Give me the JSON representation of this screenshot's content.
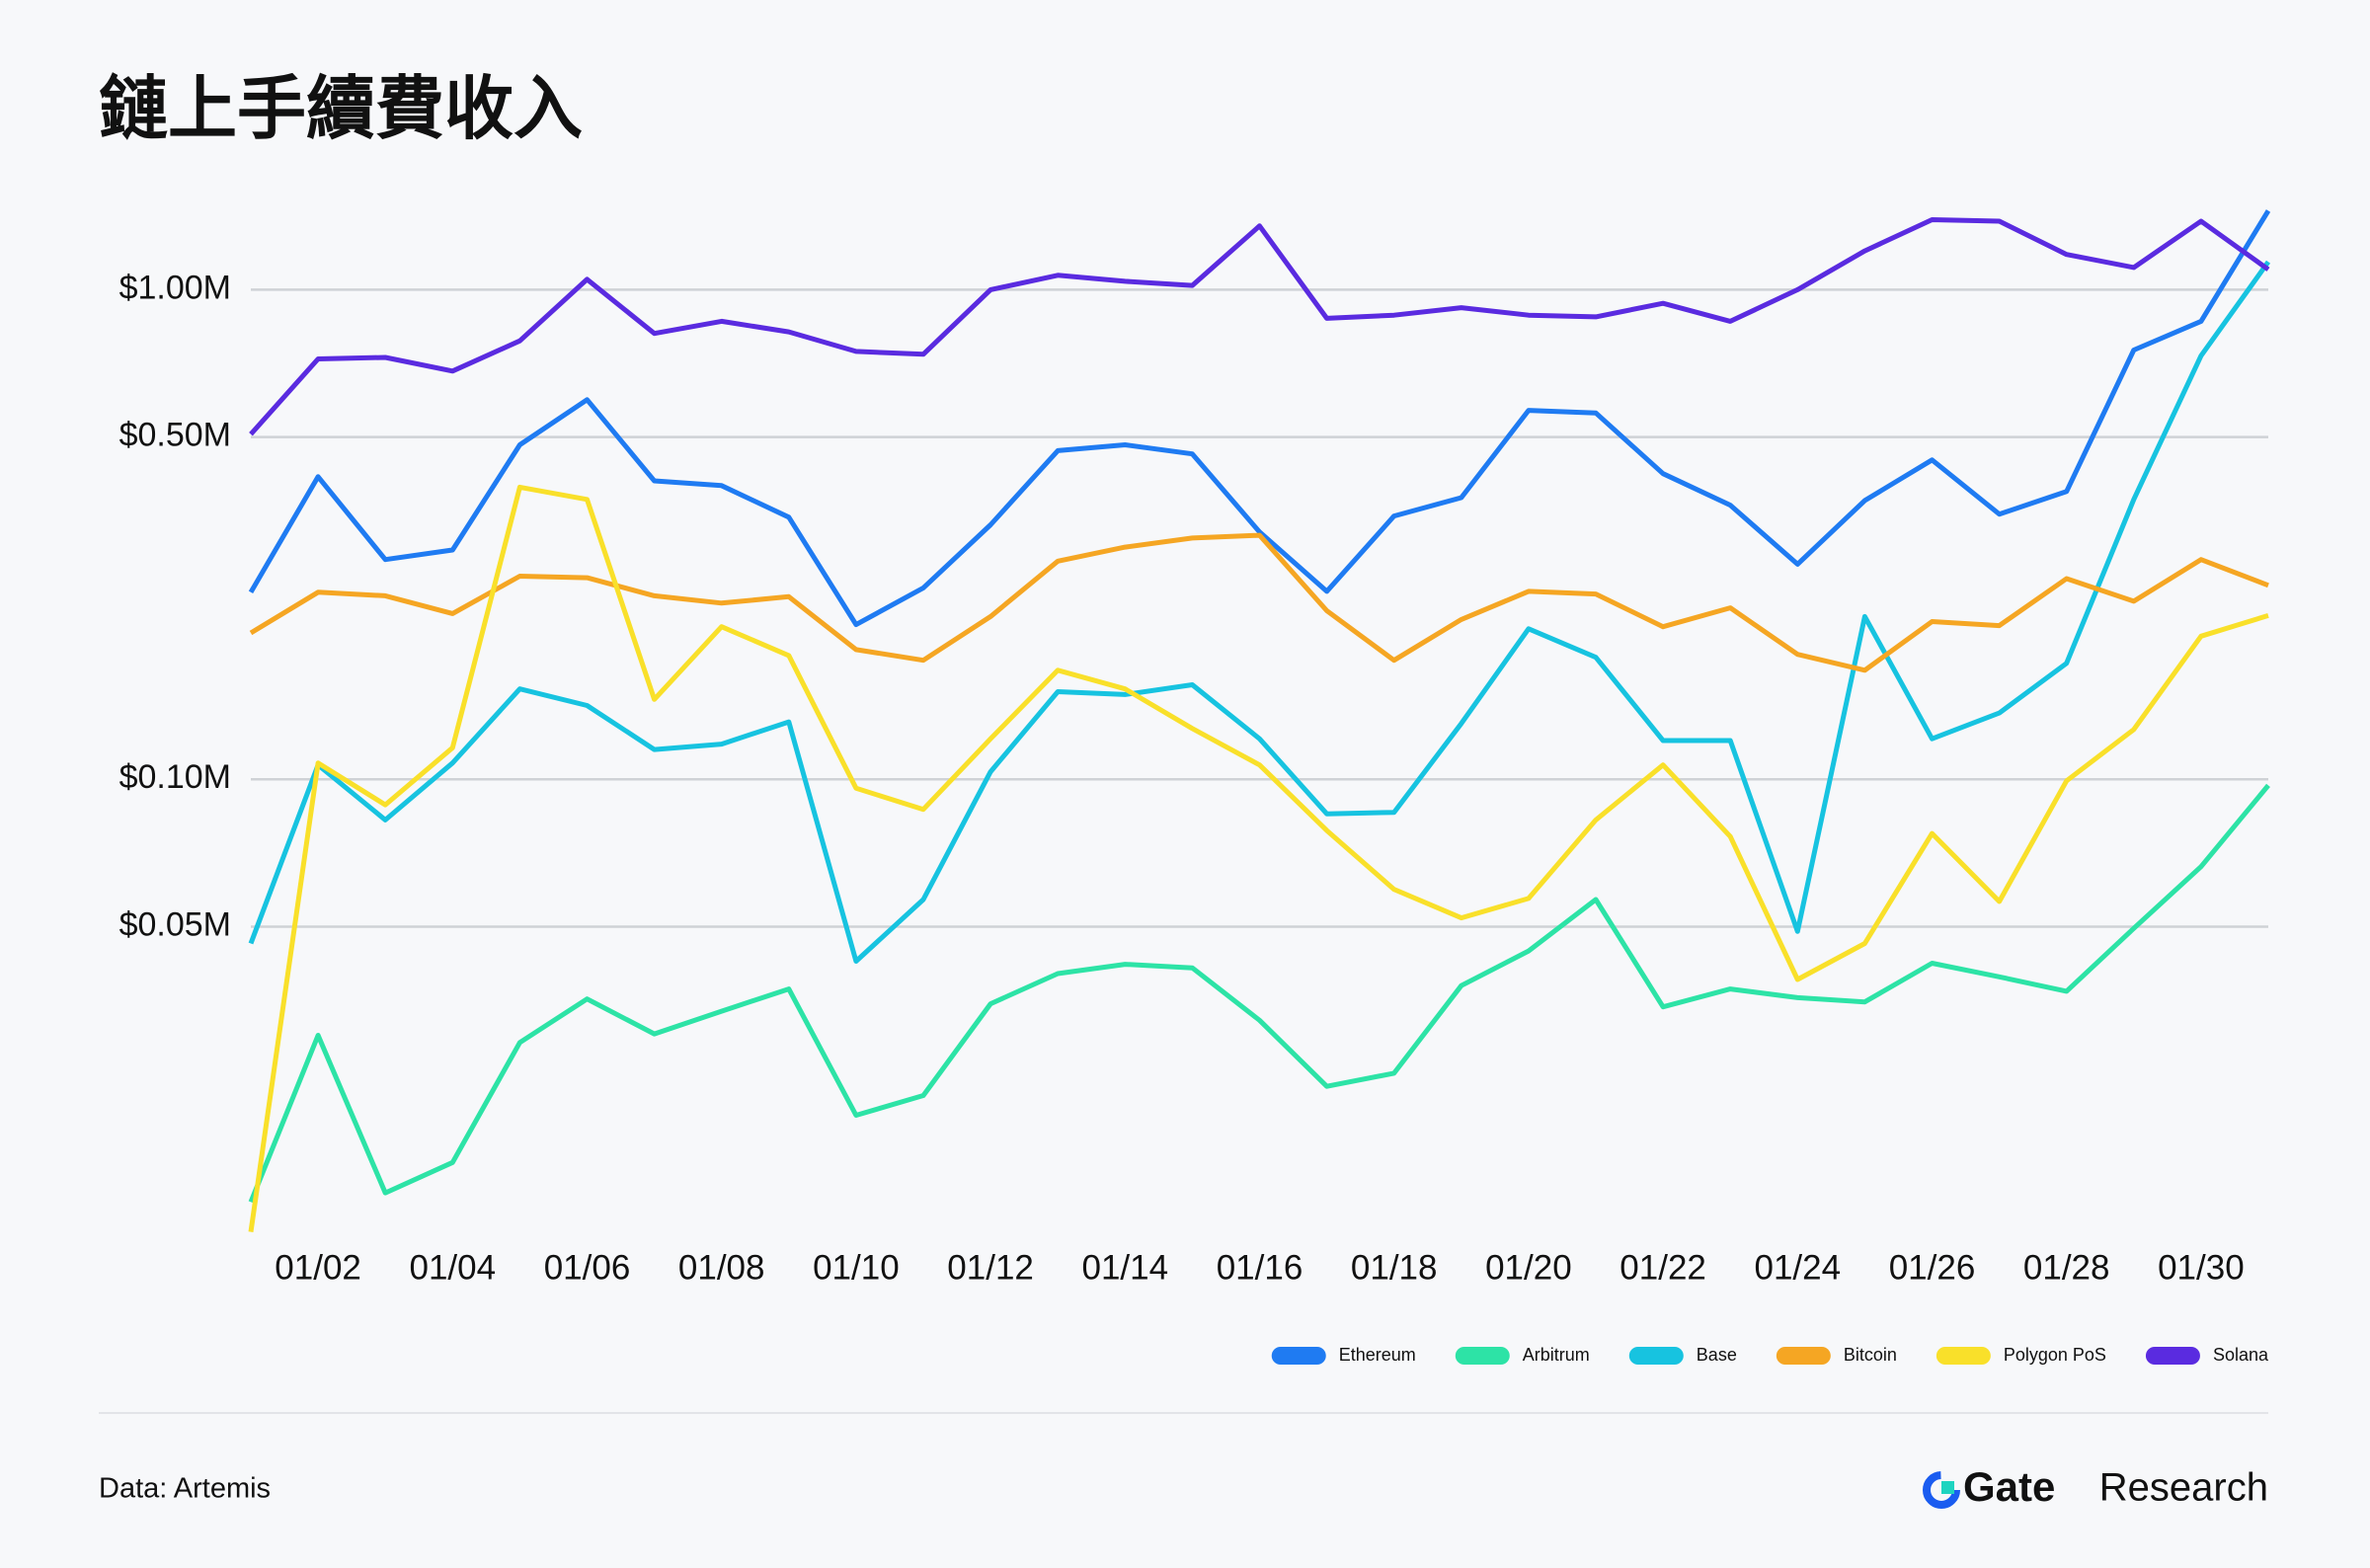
{
  "chart_data": {
    "type": "line",
    "title": "鏈上手續費收入",
    "log_scale_y": true,
    "grid": true,
    "legend": "bottom-right",
    "categories": [
      null,
      "01/02",
      null,
      "01/04",
      null,
      "01/06",
      null,
      "01/08",
      null,
      "01/10",
      null,
      "01/12",
      null,
      "01/14",
      null,
      "01/16",
      null,
      "01/18",
      null,
      "01/20",
      null,
      "01/22",
      null,
      "01/24",
      null,
      "01/26",
      null,
      "01/28",
      null,
      "01/30",
      null
    ],
    "ylim": [
      0.0115,
      1.55
    ],
    "yticks": [
      {
        "value": 0.05,
        "label": "$0.05M"
      },
      {
        "value": 0.1,
        "label": "$0.10M"
      },
      {
        "value": 0.5,
        "label": "$0.50M"
      },
      {
        "value": 1,
        "label": "$1.00M"
      }
    ],
    "series": [
      {
        "name": "Ethereum",
        "color": "#1f7bf2",
        "values": [
          0.241,
          0.415,
          0.281,
          0.294,
          0.482,
          0.596,
          0.407,
          0.398,
          0.343,
          0.207,
          0.246,
          0.331,
          0.469,
          0.482,
          0.462,
          0.32,
          0.242,
          0.345,
          0.376,
          0.567,
          0.56,
          0.421,
          0.363,
          0.275,
          0.371,
          0.449,
          0.348,
          0.387,
          0.753,
          0.862,
          1.45
        ]
      },
      {
        "name": "Arbitrum",
        "color": "#2de3a6",
        "values": [
          0.0137,
          0.03,
          0.0143,
          0.0165,
          0.029,
          0.0356,
          0.0302,
          0.0336,
          0.0373,
          0.0206,
          0.0226,
          0.0348,
          0.0401,
          0.0419,
          0.0412,
          0.0322,
          0.0236,
          0.0251,
          0.0379,
          0.0446,
          0.0568,
          0.0343,
          0.0373,
          0.0358,
          0.0351,
          0.0421,
          0.0395,
          0.0369,
          0.0496,
          0.0663,
          0.0972
        ]
      },
      {
        "name": "Base",
        "color": "#17c3e0",
        "values": [
          0.0462,
          0.107,
          0.0826,
          0.108,
          0.153,
          0.1415,
          0.115,
          0.118,
          0.131,
          0.0425,
          0.0568,
          0.1036,
          0.151,
          0.149,
          0.156,
          0.121,
          0.085,
          0.0856,
          0.13,
          0.203,
          0.1775,
          0.12,
          0.12,
          0.0489,
          0.215,
          0.121,
          0.1366,
          0.1726,
          0.373,
          0.733,
          1.14
        ]
      },
      {
        "name": "Bitcoin",
        "color": "#f5a623",
        "values": [
          0.199,
          0.241,
          0.237,
          0.218,
          0.26,
          0.258,
          0.237,
          0.229,
          0.236,
          0.184,
          0.175,
          0.215,
          0.279,
          0.298,
          0.311,
          0.315,
          0.221,
          0.175,
          0.212,
          0.242,
          0.239,
          0.205,
          0.224,
          0.18,
          0.167,
          0.21,
          0.206,
          0.257,
          0.231,
          0.281,
          0.249
        ]
      },
      {
        "name": "Polygon PoS",
        "color": "#f9e02a",
        "values": [
          0.0119,
          0.108,
          0.0887,
          0.116,
          0.395,
          0.373,
          0.1456,
          0.205,
          0.179,
          0.0959,
          0.0868,
          0.121,
          0.167,
          0.153,
          0.127,
          0.107,
          0.0786,
          0.0596,
          0.0521,
          0.0571,
          0.0826,
          0.107,
          0.0764,
          0.039,
          0.0462,
          0.0775,
          0.0563,
          0.0993,
          0.1264,
          0.196,
          0.216
        ]
      },
      {
        "name": "Solana",
        "color": "#5a2be0",
        "values": [
          0.507,
          0.722,
          0.727,
          0.682,
          0.786,
          1.05,
          0.814,
          0.862,
          0.82,
          0.748,
          0.738,
          1.0,
          1.07,
          1.04,
          1.02,
          1.35,
          0.874,
          0.887,
          0.919,
          0.887,
          0.88,
          0.938,
          0.862,
          1.0,
          1.2,
          1.39,
          1.38,
          1.18,
          1.11,
          1.38,
          1.1
        ]
      }
    ]
  },
  "footer": {
    "source": "Data: Artemis",
    "brand": "Gate",
    "brand_suffix": "Research"
  }
}
